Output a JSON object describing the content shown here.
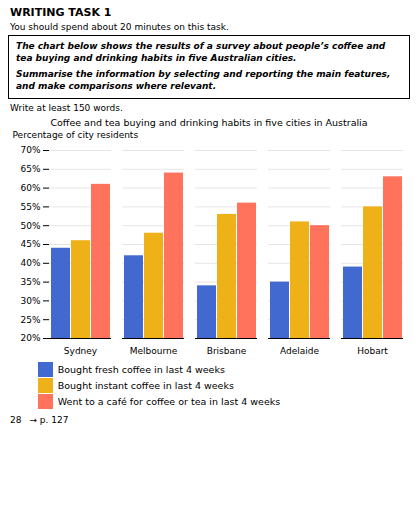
{
  "chart_data": {
    "type": "bar",
    "title": "Coffee and tea buying and drinking habits in five cities in Australia",
    "ylabel": "Percentage of city residents",
    "categories": [
      "Sydney",
      "Melbourne",
      "Brisbane",
      "Adelaide",
      "Hobart"
    ],
    "series": [
      {
        "name": "Bought fresh coffee in last 4 weeks",
        "values": [
          44,
          42,
          34,
          35,
          39
        ]
      },
      {
        "name": "Bought instant coffee in last 4 weeks",
        "values": [
          46,
          48,
          53,
          51,
          55
        ]
      },
      {
        "name": "Went to a café for coffee or tea in last 4 weeks",
        "values": [
          61,
          64,
          56,
          50,
          63
        ]
      }
    ],
    "ylim": [
      20,
      70
    ],
    "yticks": [
      {
        "value": 20,
        "label": "20%"
      },
      {
        "value": 25,
        "label": "25%"
      },
      {
        "value": 30,
        "label": "30%"
      },
      {
        "value": 35,
        "label": "35%"
      },
      {
        "value": 40,
        "label": "40%"
      },
      {
        "value": 45,
        "label": "45%"
      },
      {
        "value": 50,
        "label": "50%"
      },
      {
        "value": 55,
        "label": "55%"
      },
      {
        "value": 60,
        "label": "60%"
      },
      {
        "value": 65,
        "label": "65%"
      },
      {
        "value": 70,
        "label": "70%"
      }
    ],
    "grid": true,
    "legend": "bottom",
    "annotations": [
      "WRITING TASK 1",
      "You should spend about 20 minutes on this task.",
      "The chart below shows the results of a survey about people’s coffee and tea buying and drinking habits in five Australian cities.",
      "Summarise the information by selecting and reporting the main features, and make comparisons where relevant.",
      "Write at least 150 words.",
      "28",
      "→ p. 127"
    ]
  }
}
